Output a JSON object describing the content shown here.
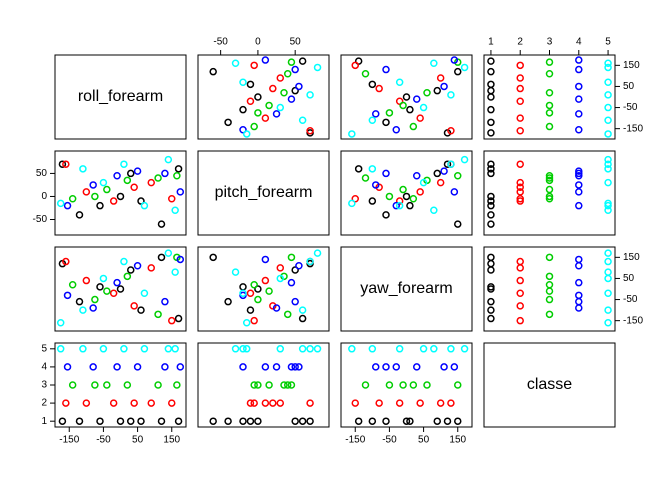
{
  "chart_data": {
    "type": "pairs",
    "variables": [
      "roll_forearm",
      "pitch_forearm",
      "yaw_forearm",
      "classe"
    ],
    "lims": [
      [
        -180,
        180
      ],
      [
        -75,
        90
      ],
      [
        -180,
        180
      ],
      [
        0.9,
        5.1
      ]
    ],
    "ticks": [
      [
        -150,
        -50,
        50,
        150
      ],
      [
        -50,
        0,
        50
      ],
      [
        -150,
        -50,
        50,
        150
      ],
      [
        1,
        2,
        3,
        4,
        5
      ]
    ],
    "colors": [
      "#000000",
      "#ff0000",
      "#00cd00",
      "#0000ff",
      "#00ffff"
    ],
    "points": [
      [
        -120,
        -40,
        -60,
        1
      ],
      [
        -60,
        -20,
        10,
        1
      ],
      [
        0,
        0,
        0,
        1
      ],
      [
        30,
        50,
        90,
        1
      ],
      [
        120,
        -60,
        150,
        1
      ],
      [
        170,
        60,
        -140,
        1
      ],
      [
        -170,
        70,
        120,
        1
      ],
      [
        60,
        -10,
        -100,
        1
      ],
      [
        -100,
        10,
        40,
        2
      ],
      [
        -20,
        -10,
        -20,
        2
      ],
      [
        40,
        20,
        -80,
        2
      ],
      [
        90,
        30,
        100,
        2
      ],
      [
        150,
        -5,
        -150,
        2
      ],
      [
        -160,
        70,
        130,
        2
      ],
      [
        -140,
        -5,
        20,
        3
      ],
      [
        -40,
        15,
        -10,
        3
      ],
      [
        20,
        35,
        60,
        3
      ],
      [
        110,
        40,
        -120,
        3
      ],
      [
        165,
        45,
        150,
        3
      ],
      [
        -75,
        0,
        -50,
        3
      ],
      [
        -155,
        -20,
        -30,
        4
      ],
      [
        -80,
        25,
        -90,
        4
      ],
      [
        -10,
        45,
        30,
        4
      ],
      [
        50,
        55,
        110,
        4
      ],
      [
        130,
        50,
        -60,
        4
      ],
      [
        175,
        10,
        140,
        4
      ],
      [
        -175,
        -15,
        -160,
        5
      ],
      [
        -110,
        60,
        -100,
        5
      ],
      [
        -50,
        30,
        50,
        5
      ],
      [
        10,
        70,
        130,
        5
      ],
      [
        70,
        -20,
        -20,
        5
      ],
      [
        140,
        80,
        170,
        5
      ],
      [
        160,
        -30,
        80,
        5
      ]
    ]
  }
}
